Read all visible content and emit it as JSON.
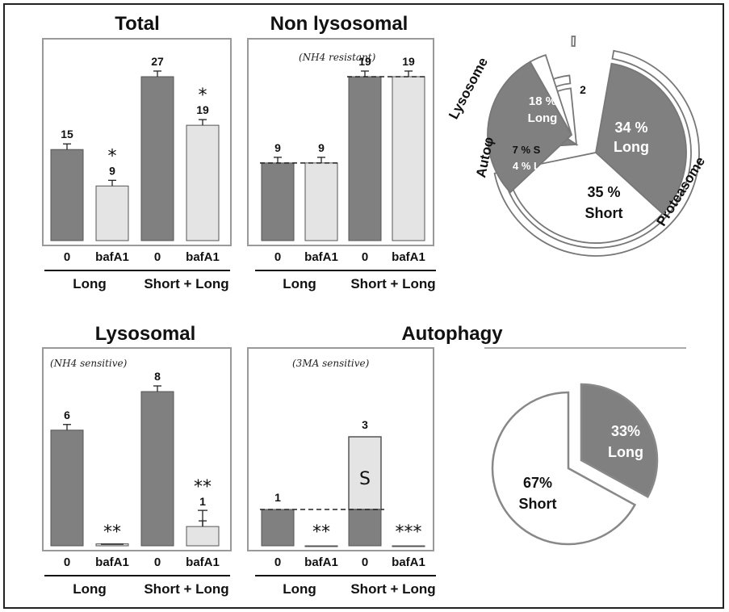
{
  "colors": {
    "dark": "#808080",
    "light": "#e4e4e4",
    "edge": "#555555",
    "white": "#ffffff"
  },
  "chart_data": [
    {
      "id": "total",
      "type": "bar",
      "title": "Total",
      "subtitle": "",
      "categories": [
        "0",
        "bafA1",
        "0",
        "bafA1"
      ],
      "groups": [
        "Long",
        "Short + Long"
      ],
      "values": [
        15,
        9,
        27,
        19
      ],
      "value_labels": [
        "15",
        "9",
        "27",
        "19"
      ],
      "annotations": [
        "",
        "*",
        "",
        "*"
      ],
      "ylim": [
        0,
        30
      ]
    },
    {
      "id": "nonlyso",
      "type": "bar",
      "title": "Non lysosomal",
      "subtitle": "(NH4 resistant)",
      "categories": [
        "0",
        "bafA1",
        "0",
        "bafA1"
      ],
      "groups": [
        "Long",
        "Short + Long"
      ],
      "values": [
        9,
        9,
        19,
        19
      ],
      "value_labels": [
        "9",
        "9",
        "19",
        "19"
      ],
      "annotations": [
        "",
        "",
        "",
        ""
      ],
      "ylim": [
        0,
        30
      ]
    },
    {
      "id": "lyso",
      "type": "bar",
      "title": "Lysosomal",
      "subtitle": "(NH4 sensitive)",
      "categories": [
        "0",
        "bafA1",
        "0",
        "bafA1"
      ],
      "groups": [
        "Long",
        "Short + Long"
      ],
      "values": [
        6,
        0.1,
        8,
        1
      ],
      "value_labels": [
        "6",
        "",
        "8",
        "1"
      ],
      "annotations": [
        "",
        "**",
        "",
        "**"
      ],
      "ylim": [
        0,
        10
      ]
    },
    {
      "id": "auto",
      "type": "bar",
      "title": "Autophagy",
      "subtitle": "(3MA sensitive)",
      "categories": [
        "0",
        "bafA1",
        "0",
        "bafA1"
      ],
      "groups": [
        "Long",
        "Short + Long"
      ],
      "values": [
        1,
        0,
        3,
        0
      ],
      "value_labels": [
        "1",
        "",
        "3",
        ""
      ],
      "annotations": [
        "",
        "**",
        "",
        "***"
      ],
      "segment_label": "S",
      "ylim": [
        0,
        4.2
      ]
    },
    {
      "id": "pie1",
      "type": "pie",
      "slices": [
        {
          "label": "34 %",
          "sub": "Long",
          "value": 34
        },
        {
          "label": "35 %",
          "sub": "Short",
          "value": 35
        },
        {
          "label": "4 % L",
          "sub": "",
          "value": 4
        },
        {
          "label": "7 % S",
          "sub": "",
          "value": 7
        },
        {
          "label": "2",
          "sub": "",
          "value": 2
        },
        {
          "label": "18 %",
          "sub": "Long",
          "value": 18
        }
      ],
      "groups": [
        "Proteasome",
        "Autoφ",
        "Lysosome"
      ]
    },
    {
      "id": "pie2",
      "type": "pie",
      "slices": [
        {
          "label": "33%",
          "sub": "Long",
          "value": 33
        },
        {
          "label": "67%",
          "sub": "Short",
          "value": 67
        }
      ]
    }
  ]
}
